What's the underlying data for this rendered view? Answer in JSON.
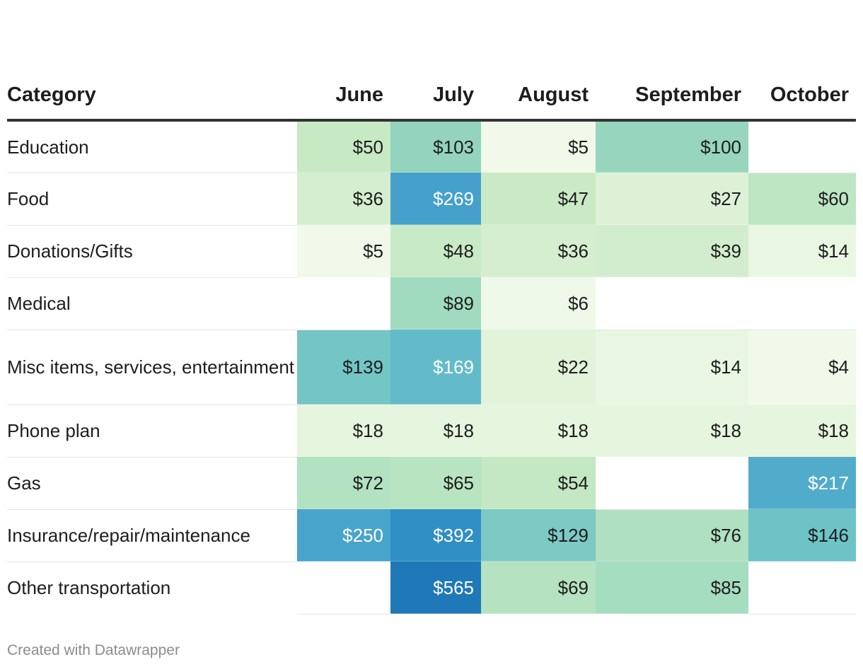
{
  "chart_data": {
    "type": "heatmap",
    "title": "",
    "category_header": "Category",
    "months": [
      "June",
      "July",
      "August",
      "September",
      "October"
    ],
    "rows": [
      {
        "category": "Education",
        "values": [
          50,
          103,
          5,
          100,
          null
        ]
      },
      {
        "category": "Food",
        "values": [
          36,
          269,
          47,
          27,
          60
        ]
      },
      {
        "category": "Donations/Gifts",
        "values": [
          5,
          48,
          36,
          39,
          14
        ]
      },
      {
        "category": "Medical",
        "values": [
          null,
          89,
          6,
          null,
          null
        ]
      },
      {
        "category": "Misc items, services, entertainment",
        "values": [
          139,
          169,
          22,
          14,
          4
        ]
      },
      {
        "category": "Phone plan",
        "values": [
          18,
          18,
          18,
          18,
          18
        ]
      },
      {
        "category": "Gas",
        "values": [
          72,
          65,
          54,
          null,
          217
        ]
      },
      {
        "category": "Insurance/repair/maintenance",
        "values": [
          250,
          392,
          129,
          76,
          146
        ]
      },
      {
        "category": "Other transportation",
        "values": [
          null,
          565,
          69,
          85,
          null
        ]
      }
    ],
    "currency_prefix": "$",
    "color_scale": [
      {
        "value": 0,
        "color": "#f4fbee"
      },
      {
        "value": 20,
        "color": "#e4f4dc"
      },
      {
        "value": 50,
        "color": "#c7e9c4"
      },
      {
        "value": 80,
        "color": "#aadfc0"
      },
      {
        "value": 110,
        "color": "#8dd0be"
      },
      {
        "value": 150,
        "color": "#6bc1c8"
      },
      {
        "value": 200,
        "color": "#55b0cc"
      },
      {
        "value": 260,
        "color": "#46a2cc"
      },
      {
        "value": 400,
        "color": "#2f8ec4"
      },
      {
        "value": 565,
        "color": "#1f78b8"
      }
    ],
    "dark_text_color": "#1d1d1d",
    "light_text_color": "#ffffff",
    "light_text_threshold": 160
  },
  "footer": {
    "credit": "Created with Datawrapper"
  }
}
